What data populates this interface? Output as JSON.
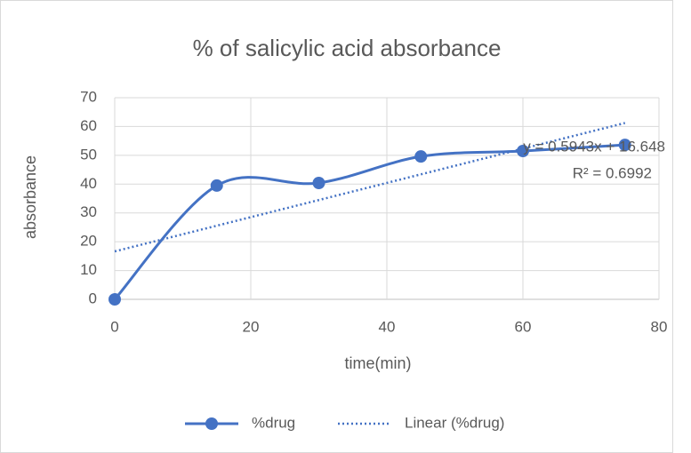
{
  "chart_data": {
    "type": "scatter",
    "title": "% of salicylic acid absorbance",
    "x_label": "time(min)",
    "y_label": "absorbance",
    "x": [
      0,
      15,
      30,
      45,
      60,
      75
    ],
    "series": [
      {
        "name": "%drug",
        "color": "#4472c4",
        "values": [
          0,
          39.5,
          40.4,
          49.6,
          51.5,
          53.6
        ],
        "smooth": true
      }
    ],
    "trendline": {
      "name": "Linear (%drug)",
      "slope": 0.5943,
      "intercept": 16.648,
      "equation": "y = 0.5943x + 16.648",
      "r_squared": "R² = 0.6992"
    },
    "xlim": [
      0,
      80
    ],
    "xticks": [
      0,
      20,
      40,
      60,
      80
    ],
    "ylim": [
      0,
      70
    ],
    "yticks": [
      0,
      10,
      20,
      30,
      40,
      50,
      60,
      70
    ],
    "grid": true,
    "legend": "bottom"
  }
}
